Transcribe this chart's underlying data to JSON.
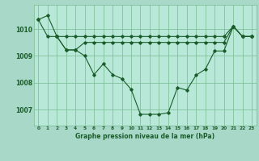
{
  "background_color": "#a8d8c8",
  "plot_bg_color": "#b8e8d8",
  "grid_color": "#78b890",
  "line_color": "#1a5c2a",
  "title": "Graphe pression niveau de la mer (hPa)",
  "ylim": [
    1006.4,
    1010.9
  ],
  "yticks": [
    1007,
    1008,
    1009,
    1010
  ],
  "series1_x": [
    0,
    1,
    2,
    3,
    4,
    5,
    6,
    7,
    8,
    9,
    10,
    11,
    12,
    13,
    14,
    15,
    16,
    17,
    18,
    19,
    20,
    21,
    22,
    23
  ],
  "series1_y": [
    1010.35,
    1010.5,
    1009.72,
    1009.72,
    1009.72,
    1009.72,
    1009.72,
    1009.72,
    1009.72,
    1009.72,
    1009.72,
    1009.72,
    1009.72,
    1009.72,
    1009.72,
    1009.72,
    1009.72,
    1009.72,
    1009.72,
    1009.72,
    1009.72,
    1010.1,
    1009.72,
    1009.72
  ],
  "series2_x": [
    2,
    3,
    4,
    5,
    6,
    7,
    8,
    9,
    10,
    11,
    12,
    13,
    14,
    15,
    16,
    17,
    18,
    19,
    20,
    21,
    22,
    23
  ],
  "series2_y": [
    1009.72,
    1009.22,
    1009.22,
    1009.5,
    1009.5,
    1009.5,
    1009.5,
    1009.5,
    1009.5,
    1009.5,
    1009.5,
    1009.5,
    1009.5,
    1009.5,
    1009.5,
    1009.5,
    1009.5,
    1009.5,
    1009.5,
    1010.1,
    1009.72,
    1009.72
  ],
  "series3_x": [
    0,
    1,
    2,
    3,
    4,
    5,
    6,
    7,
    8,
    9,
    10,
    11,
    12,
    13,
    14,
    15,
    16,
    17,
    18,
    19,
    20,
    21,
    22,
    23
  ],
  "series3_y": [
    1010.35,
    1009.72,
    1009.72,
    1009.22,
    1009.22,
    1009.0,
    1008.3,
    1008.7,
    1008.3,
    1008.15,
    1007.75,
    1006.82,
    1006.82,
    1006.82,
    1006.88,
    1007.82,
    1007.72,
    1008.28,
    1008.5,
    1009.18,
    1009.18,
    1010.1,
    1009.72,
    1009.72
  ]
}
